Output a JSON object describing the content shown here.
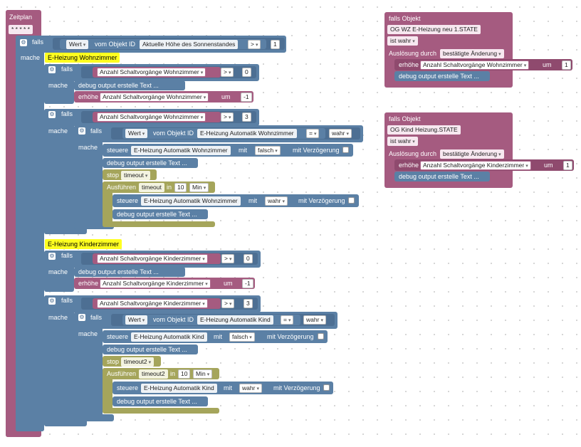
{
  "schedule": {
    "title": "Zeitplan",
    "cron": "* * * * *"
  },
  "labels": {
    "falls": "falls",
    "mache": "mache"
  },
  "main_if": {
    "wert": "Wert",
    "vom_objekt": "vom Objekt ID",
    "object": "Aktuelle Höhe des Sonnenstandes",
    "op": ">",
    "value": "1"
  },
  "comment_wz": "E-Heizung Wohnzimmer",
  "comment_kz": "E-Heizung Kinderzimmer",
  "wz": {
    "var": "Anzahl Schaltvorgänge Wohnzimmer",
    "op_gt": ">",
    "val0": "0",
    "val3": "3",
    "debug": "debug output erstelle Text ...",
    "incr": "erhöhe",
    "um": "um",
    "incr_val": "-1",
    "obj": "E-Heizung Automatik Wohnzimmer",
    "eq": "=",
    "wahr": "wahr",
    "steuere": "steuere",
    "mit": "mit",
    "falsch": "falsch",
    "verz": "mit Verzögerung",
    "stop": "stop",
    "timeout": "timeout",
    "ausfuehren": "Ausführen",
    "in": "in",
    "min_val": "10",
    "min": "Min"
  },
  "kz": {
    "var": "Anzahl Schaltvorgänge Kinderzimmer",
    "val0": "0",
    "val3": "3",
    "incr_val": "-1",
    "obj": "E-Heizung Automatik Kind",
    "timeout": "timeout2"
  },
  "trig1": {
    "title": "falls Objekt",
    "obj": "OG WZ E-Heizung neu 1.STATE",
    "ist": "ist wahr",
    "ausl": "Auslösung durch",
    "ausl_val": "bestätigte Änderung",
    "incr": "erhöhe",
    "var": "Anzahl Schaltvorgänge Wohnzimmer",
    "um": "um",
    "val": "1",
    "debug": "debug output erstelle Text ..."
  },
  "trig2": {
    "title": "falls Objekt",
    "obj": "OG Kind Heizung.STATE",
    "ist": "ist wahr",
    "ausl": "Auslösung durch",
    "ausl_val": "bestätigte Änderung",
    "incr": "erhöhe",
    "var": "Anzahl Schaltvorgänge Kinderzimmer",
    "um": "um",
    "val": "1",
    "debug": "debug output erstelle Text ..."
  },
  "colors": {
    "schedule": "#a55b80",
    "logic": "#5b80a5",
    "timeout": "#a5a55b",
    "comment": "#ffff20"
  },
  "icons": [
    "gear-icon",
    "dropdown-arrow-icon",
    "checkbox"
  ]
}
